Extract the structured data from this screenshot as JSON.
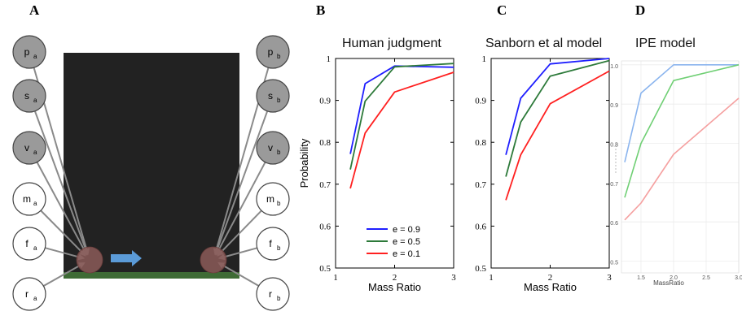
{
  "panels": {
    "A": "A",
    "B": "B",
    "C": "C",
    "D": "D"
  },
  "diagram": {
    "left_nodes": [
      {
        "symbol": "p",
        "sub": "a",
        "shaded": true
      },
      {
        "symbol": "s",
        "sub": "a",
        "shaded": true
      },
      {
        "symbol": "v",
        "sub": "a",
        "shaded": true
      },
      {
        "symbol": "m",
        "sub": "a",
        "shaded": false
      },
      {
        "symbol": "f",
        "sub": "a",
        "shaded": false
      },
      {
        "symbol": "r",
        "sub": "a",
        "shaded": false
      }
    ],
    "right_nodes": [
      {
        "symbol": "p",
        "sub": "b",
        "shaded": true
      },
      {
        "symbol": "s",
        "sub": "b",
        "shaded": true
      },
      {
        "symbol": "v",
        "sub": "b",
        "shaded": true
      },
      {
        "symbol": "m",
        "sub": "b",
        "shaded": false
      },
      {
        "symbol": "f",
        "sub": "b",
        "shaded": false
      },
      {
        "symbol": "r",
        "sub": "b",
        "shaded": false
      }
    ],
    "colors": {
      "scene_bg": "#222222",
      "ground": "#3e6b35",
      "ball": "#8b5a58",
      "arrow": "#5b9bd8",
      "node_shaded": "#9a9a9a"
    }
  },
  "chart_data": [
    {
      "type": "line",
      "title": "Human judgment",
      "xlabel": "Mass Ratio",
      "ylabel": "Probability",
      "xlim": [
        1,
        3
      ],
      "ylim": [
        0.5,
        1
      ],
      "xticks": [
        1,
        2,
        3
      ],
      "yticks": [
        0.5,
        0.6,
        0.7,
        0.8,
        0.9,
        1
      ],
      "legend": "bottom-right",
      "series": [
        {
          "name": "e = 0.9",
          "color": "#1f1fff",
          "x": [
            1.25,
            1.5,
            2,
            3
          ],
          "y": [
            0.772,
            0.94,
            0.982,
            0.979
          ]
        },
        {
          "name": "e = 0.5",
          "color": "#2d7a3a",
          "x": [
            1.25,
            1.5,
            2,
            3
          ],
          "y": [
            0.735,
            0.898,
            0.98,
            0.988
          ]
        },
        {
          "name": "e = 0.1",
          "color": "#ff2020",
          "x": [
            1.25,
            1.5,
            2,
            3
          ],
          "y": [
            0.69,
            0.822,
            0.92,
            0.967
          ]
        }
      ]
    },
    {
      "type": "line",
      "title": "Sanborn et al model",
      "xlabel": "Mass Ratio",
      "ylabel": "",
      "xlim": [
        1,
        3
      ],
      "ylim": [
        0.5,
        1
      ],
      "xticks": [
        1,
        2,
        3
      ],
      "yticks": [
        0.5,
        0.6,
        0.7,
        0.8,
        0.9,
        1
      ],
      "series": [
        {
          "color": "#1f1fff",
          "x": [
            1.25,
            1.5,
            2,
            3
          ],
          "y": [
            0.77,
            0.905,
            0.987,
            1.0
          ]
        },
        {
          "color": "#2d7a3a",
          "x": [
            1.25,
            1.5,
            2,
            3
          ],
          "y": [
            0.718,
            0.848,
            0.958,
            0.995
          ]
        },
        {
          "color": "#ff2020",
          "x": [
            1.25,
            1.5,
            2,
            3
          ],
          "y": [
            0.662,
            0.77,
            0.892,
            0.97
          ]
        }
      ]
    },
    {
      "type": "line",
      "title": "IPE model",
      "xlabel": "MassRatio",
      "ylabel": "",
      "xlim": [
        1.2,
        3.0
      ],
      "ylim": [
        0.47,
        1.01
      ],
      "xticks": [
        1.5,
        2.0,
        2.5,
        3.0
      ],
      "xtick_labels": [
        "1.5",
        "2.0",
        "2.5",
        "3.0"
      ],
      "yticks": [
        0.5,
        0.6,
        0.7,
        0.8,
        0.9,
        1.0
      ],
      "ytick_labels": [
        "0.5",
        "0.6",
        "0.7",
        "0.8",
        "0.9",
        "1.0"
      ],
      "grid": true,
      "series": [
        {
          "color": "#8ab4ee",
          "x": [
            1.25,
            1.5,
            2,
            3
          ],
          "y": [
            0.752,
            0.928,
            1.0,
            1.0
          ]
        },
        {
          "color": "#6fcf74",
          "x": [
            1.25,
            1.5,
            2,
            3
          ],
          "y": [
            0.662,
            0.8,
            0.96,
            1.0
          ]
        },
        {
          "color": "#f5a0a0",
          "x": [
            1.25,
            1.5,
            2,
            3
          ],
          "y": [
            0.605,
            0.648,
            0.772,
            0.915
          ]
        }
      ]
    }
  ]
}
